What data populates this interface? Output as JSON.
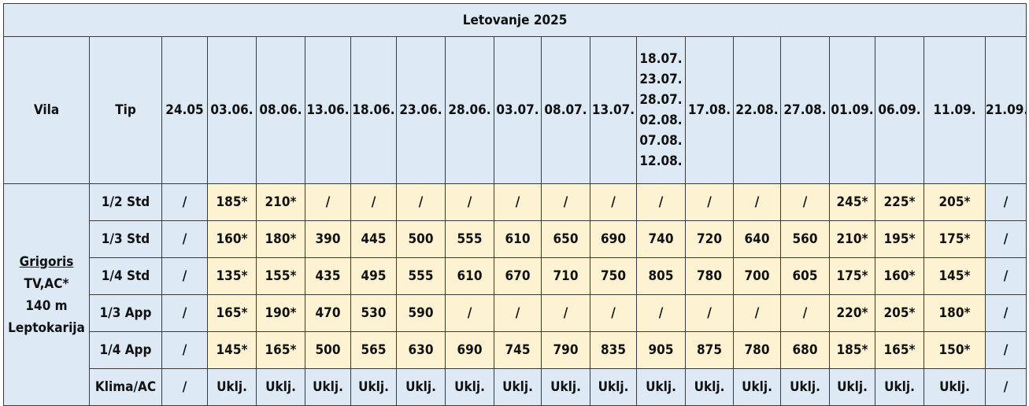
{
  "title": "Letovanje 2025",
  "headers": {
    "vila": "Vila",
    "tip": "Tip",
    "dates": [
      [
        "24.05"
      ],
      [
        "03.06."
      ],
      [
        "08.06."
      ],
      [
        "13.06."
      ],
      [
        "18.06."
      ],
      [
        "23.06."
      ],
      [
        "28.06."
      ],
      [
        "03.07."
      ],
      [
        "08.07."
      ],
      [
        "13.07."
      ],
      [
        "18.07.",
        "23.07.",
        "28.07.",
        "02.08.",
        "07.08.",
        "12.08."
      ],
      [
        "17.08."
      ],
      [
        "22.08."
      ],
      [
        "27.08."
      ],
      [
        "01.09."
      ],
      [
        "06.09."
      ],
      [
        "11.09."
      ],
      [
        "21.09."
      ]
    ]
  },
  "vila": {
    "name": "Grigoris",
    "features": "TV,AC*",
    "distance": "140 m",
    "location": "Leptokarija"
  },
  "rows": [
    {
      "tip": "1/2 Std",
      "values": [
        "/",
        "185*",
        "210*",
        "/",
        "/",
        "/",
        "/",
        "/",
        "/",
        "/",
        "/",
        "/",
        "/",
        "/",
        "245*",
        "225*",
        "205*",
        "/"
      ]
    },
    {
      "tip": "1/3 Std",
      "values": [
        "/",
        "160*",
        "180*",
        "390",
        "445",
        "500",
        "555",
        "610",
        "650",
        "690",
        "740",
        "720",
        "640",
        "560",
        "210*",
        "195*",
        "175*",
        "/"
      ]
    },
    {
      "tip": "1/4 Std",
      "values": [
        "/",
        "135*",
        "155*",
        "435",
        "495",
        "555",
        "610",
        "670",
        "710",
        "750",
        "805",
        "780",
        "700",
        "605",
        "175*",
        "160*",
        "145*",
        "/"
      ]
    },
    {
      "tip": "1/3 App",
      "values": [
        "/",
        "165*",
        "190*",
        "470",
        "530",
        "590",
        "/",
        "/",
        "/",
        "/",
        "/",
        "/",
        "/",
        "/",
        "220*",
        "205*",
        "180*",
        "/"
      ]
    },
    {
      "tip": "1/4 App",
      "values": [
        "/",
        "145*",
        "165*",
        "500",
        "565",
        "630",
        "690",
        "745",
        "790",
        "835",
        "905",
        "875",
        "780",
        "680",
        "185*",
        "165*",
        "150*",
        "/"
      ]
    },
    {
      "tip": "Klima/AC",
      "values": [
        "/",
        "Uklj.",
        "Uklj.",
        "Uklj.",
        "Uklj.",
        "Uklj.",
        "Uklj.",
        "Uklj.",
        "Uklj.",
        "Uklj.",
        "Uklj.",
        "Uklj.",
        "Uklj.",
        "Uklj.",
        "Uklj.",
        "Uklj.",
        "Uklj.",
        "/"
      ]
    }
  ],
  "colors": {
    "header_bg": "#dde9f5",
    "price_bg": "#fdf3d3",
    "border": "#3a3a3a"
  }
}
